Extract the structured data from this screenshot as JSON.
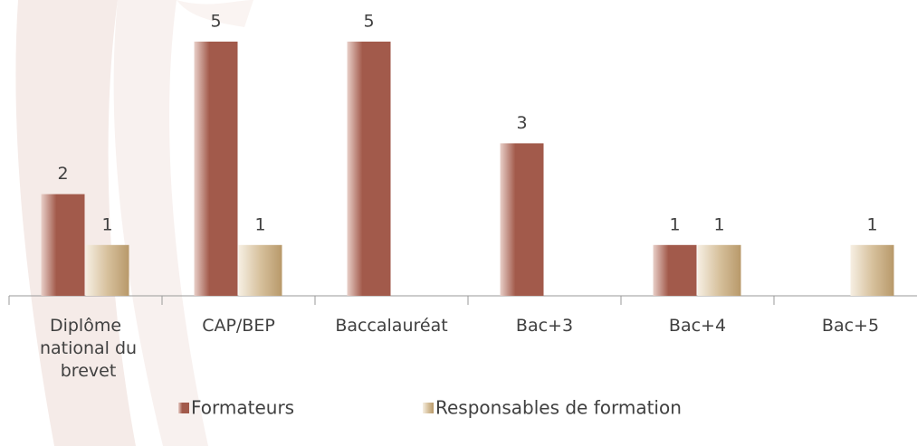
{
  "chart_data": {
    "type": "bar",
    "categories": [
      "Diplôme national du brevet",
      "CAP/BEP",
      "Baccalauréat",
      "Bac+3",
      "Bac+4",
      "Bac+5"
    ],
    "series": [
      {
        "name": "Formateurs",
        "color": "#a25a4b",
        "values": [
          2,
          5,
          5,
          3,
          1,
          null
        ]
      },
      {
        "name": "Responsables de formation",
        "color": "#b8996a",
        "values": [
          1,
          1,
          null,
          null,
          1,
          1
        ]
      }
    ],
    "ylim": [
      0,
      5.8
    ],
    "legend": "bottom"
  }
}
